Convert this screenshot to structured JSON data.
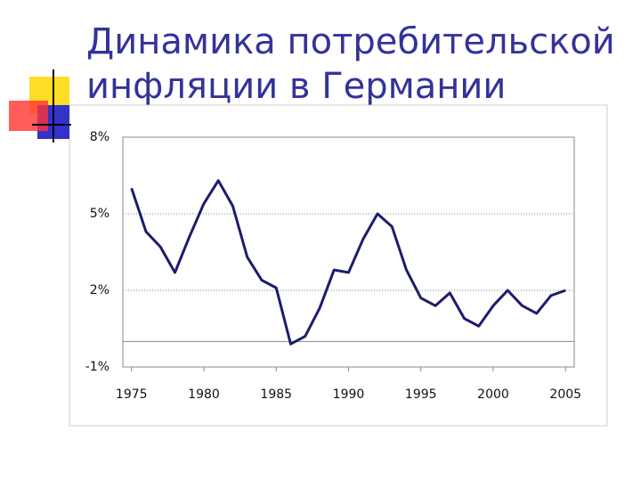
{
  "chart_data": {
    "type": "line",
    "title": "Динамика потребительской инфляции в Германии",
    "x": [
      1975,
      1976,
      1977,
      1978,
      1979,
      1980,
      1981,
      1982,
      1983,
      1984,
      1985,
      1986,
      1987,
      1988,
      1989,
      1990,
      1991,
      1992,
      1993,
      1994,
      1995,
      1996,
      1997,
      1998,
      1999,
      2000,
      2001,
      2002,
      2003,
      2004,
      2005
    ],
    "series": [
      {
        "color": "#1c1c6e",
        "values": [
          6.0,
          4.3,
          3.7,
          2.7,
          4.1,
          5.4,
          6.3,
          5.3,
          3.3,
          2.4,
          2.1,
          -0.1,
          0.2,
          1.3,
          2.8,
          2.7,
          4.0,
          5.0,
          4.5,
          2.8,
          1.7,
          1.4,
          1.9,
          0.9,
          0.6,
          1.4,
          2.0,
          1.4,
          1.1,
          1.8,
          2.0
        ]
      }
    ],
    "xlim": [
      1974.4,
      2005.6
    ],
    "xticks": [
      1975,
      1980,
      1985,
      1990,
      1995,
      2000,
      2005
    ],
    "ylim": [
      -1,
      8
    ],
    "yticks": [
      {
        "value": 8,
        "label": "8%"
      },
      {
        "value": 5,
        "label": "5%"
      },
      {
        "value": 2,
        "label": "2%"
      },
      {
        "value": -1,
        "label": "-1%"
      }
    ],
    "grid": true
  }
}
